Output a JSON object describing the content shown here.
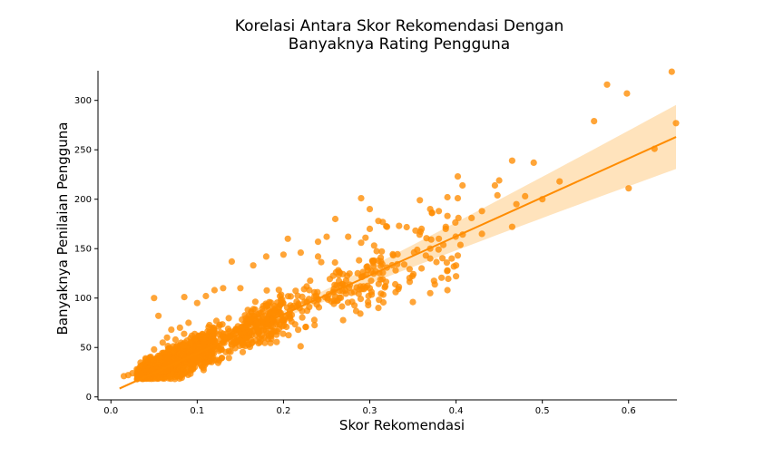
{
  "chart_data": {
    "type": "scatter",
    "title_line1": "Korelasi Antara Skor Rekomendasi Dengan",
    "title_line2": "Banyaknya Rating Pengguna",
    "xlabel": "Skor Rekomendasi",
    "ylabel": "Banyaknya Penilaian Pengguna",
    "xlim": [
      -0.015,
      0.656
    ],
    "ylim": [
      -3,
      330
    ],
    "xticks": [
      "0.0",
      "0.1",
      "0.2",
      "0.3",
      "0.4",
      "0.5",
      "0.6"
    ],
    "yticks": [
      "0",
      "50",
      "100",
      "150",
      "200",
      "250",
      "300"
    ],
    "grid": false,
    "legend": "none",
    "point_color": "#ff8c00",
    "line_color": "#ff8c00",
    "band_color": "#ffd9a6",
    "regression": {
      "slope": 394.5,
      "intercept": 4.6,
      "x_range": [
        0.01,
        0.655
      ]
    },
    "points_explicit": [
      [
        0.65,
        329
      ],
      [
        0.575,
        316
      ],
      [
        0.598,
        307
      ],
      [
        0.56,
        279
      ],
      [
        0.655,
        277
      ],
      [
        0.63,
        251
      ],
      [
        0.6,
        211
      ],
      [
        0.52,
        218
      ],
      [
        0.49,
        237
      ],
      [
        0.465,
        239
      ],
      [
        0.5,
        200
      ],
      [
        0.48,
        203
      ],
      [
        0.47,
        195
      ],
      [
        0.465,
        172
      ],
      [
        0.45,
        219
      ],
      [
        0.445,
        214
      ],
      [
        0.448,
        204
      ],
      [
        0.43,
        188
      ],
      [
        0.43,
        165
      ],
      [
        0.418,
        181
      ],
      [
        0.402,
        223
      ],
      [
        0.402,
        201
      ],
      [
        0.39,
        202
      ],
      [
        0.39,
        183
      ],
      [
        0.388,
        170
      ],
      [
        0.38,
        188
      ],
      [
        0.372,
        186
      ],
      [
        0.37,
        190
      ],
      [
        0.358,
        199
      ],
      [
        0.36,
        170
      ],
      [
        0.38,
        160
      ],
      [
        0.37,
        150
      ],
      [
        0.365,
        143
      ],
      [
        0.402,
        143
      ],
      [
        0.4,
        133
      ],
      [
        0.37,
        140
      ],
      [
        0.36,
        130
      ],
      [
        0.34,
        134
      ],
      [
        0.33,
        128
      ],
      [
        0.32,
        172
      ],
      [
        0.315,
        177
      ],
      [
        0.31,
        178
      ],
      [
        0.3,
        190
      ],
      [
        0.29,
        201
      ],
      [
        0.3,
        170
      ],
      [
        0.295,
        161
      ],
      [
        0.29,
        156
      ],
      [
        0.275,
        162
      ],
      [
        0.26,
        180
      ],
      [
        0.25,
        162
      ],
      [
        0.24,
        157
      ],
      [
        0.24,
        142
      ],
      [
        0.22,
        146
      ],
      [
        0.205,
        160
      ],
      [
        0.2,
        144
      ],
      [
        0.18,
        142
      ],
      [
        0.165,
        133
      ],
      [
        0.14,
        137
      ],
      [
        0.15,
        110
      ],
      [
        0.13,
        110
      ],
      [
        0.12,
        108
      ],
      [
        0.11,
        102
      ],
      [
        0.085,
        101
      ],
      [
        0.05,
        100
      ],
      [
        0.35,
        96
      ],
      [
        0.37,
        105
      ],
      [
        0.39,
        108
      ],
      [
        0.4,
        122
      ],
      [
        0.39,
        128
      ],
      [
        0.395,
        140
      ],
      [
        0.318,
        112
      ],
      [
        0.33,
        106
      ],
      [
        0.31,
        90
      ],
      [
        0.298,
        96
      ],
      [
        0.3,
        110
      ],
      [
        0.07,
        68
      ],
      [
        0.06,
        55
      ],
      [
        0.05,
        48
      ],
      [
        0.045,
        40
      ],
      [
        0.04,
        35
      ],
      [
        0.035,
        30
      ],
      [
        0.03,
        28
      ],
      [
        0.025,
        24
      ],
      [
        0.02,
        22
      ],
      [
        0.015,
        21
      ],
      [
        0.055,
        82
      ],
      [
        0.065,
        60
      ],
      [
        0.08,
        70
      ],
      [
        0.09,
        75
      ],
      [
        0.1,
        95
      ]
    ]
  }
}
